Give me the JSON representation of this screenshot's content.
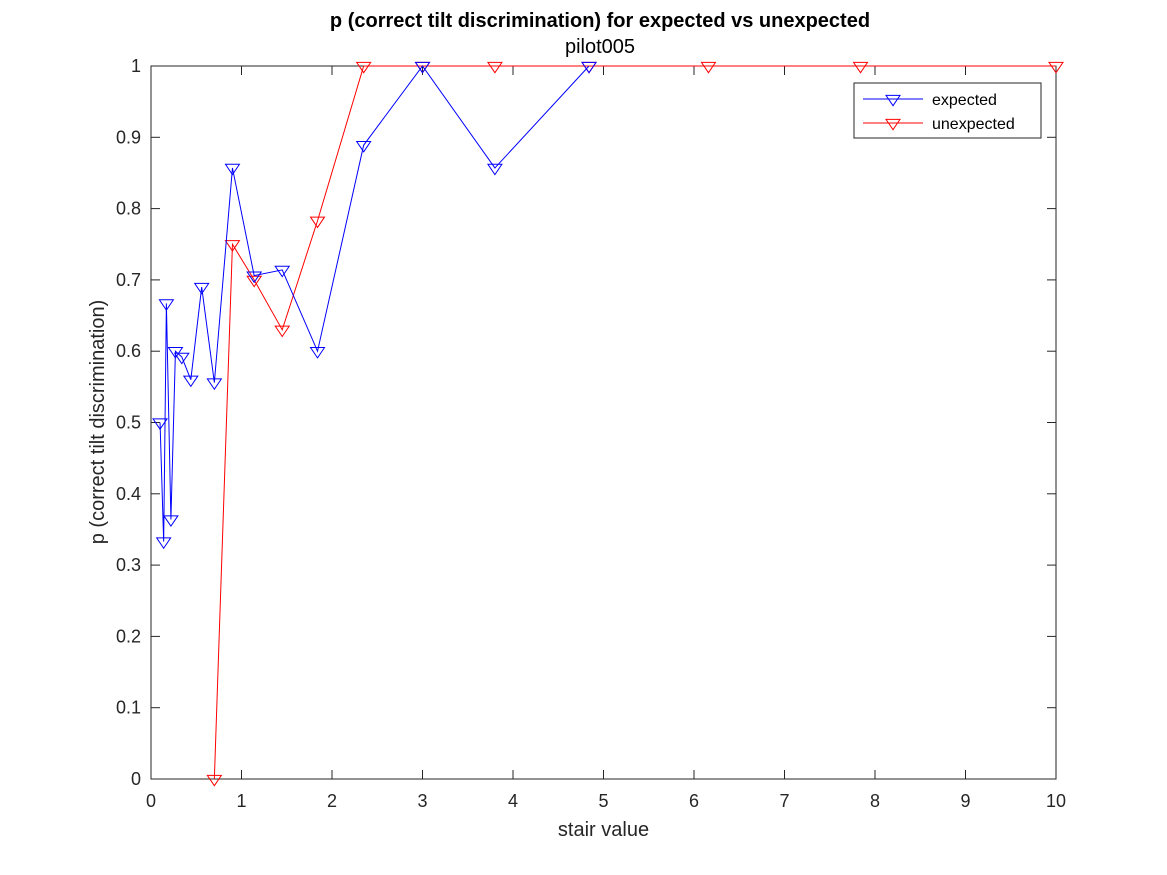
{
  "chart_data": {
    "type": "line",
    "title": "p (correct tilt discrimination) for expected vs unexpected",
    "subtitle": "pilot005",
    "xlabel": "stair value",
    "ylabel": "p (correct tilt discrimination)",
    "xlim": [
      0,
      10
    ],
    "ylim": [
      0,
      1
    ],
    "xticks": [
      0,
      1,
      2,
      3,
      4,
      5,
      6,
      7,
      8,
      9,
      10
    ],
    "yticks": [
      0,
      0.1,
      0.2,
      0.3,
      0.4,
      0.5,
      0.6,
      0.7,
      0.8,
      0.9,
      1
    ],
    "grid": false,
    "legend_position": "top-right",
    "marker": "downward-triangle",
    "series": [
      {
        "name": "expected",
        "color": "#0000ff",
        "x": [
          0.1,
          0.14,
          0.17,
          0.22,
          0.27,
          0.34,
          0.44,
          0.56,
          0.7,
          0.9,
          1.14,
          1.45,
          1.84,
          2.35,
          3.0,
          3.8,
          4.84
        ],
        "y": [
          0.5,
          0.333,
          0.667,
          0.364,
          0.6,
          0.592,
          0.56,
          0.69,
          0.556,
          0.857,
          0.706,
          0.714,
          0.6,
          0.889,
          1.0,
          0.857,
          1.0
        ]
      },
      {
        "name": "unexpected",
        "color": "#ff0000",
        "x": [
          0.7,
          0.9,
          1.14,
          1.45,
          1.84,
          2.35,
          3.0,
          3.8,
          4.84,
          6.16,
          7.84,
          10.0
        ],
        "y": [
          0.0,
          0.75,
          0.7,
          0.63,
          0.783,
          1.0,
          1.0,
          1.0,
          1.0,
          1.0,
          1.0,
          1.0
        ]
      }
    ]
  }
}
